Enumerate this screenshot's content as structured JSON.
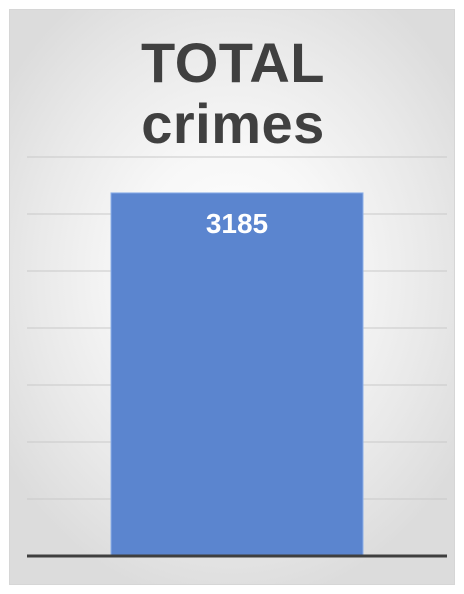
{
  "chart_data": {
    "type": "bar",
    "title_lines": [
      "TOTAL",
      "crimes"
    ],
    "categories": [
      ""
    ],
    "values": [
      3185
    ],
    "ylim": [
      0,
      3500
    ],
    "grid": true,
    "axes_visible": false,
    "legend": "none",
    "data_labels": [
      "3185"
    ],
    "bar_color": "#5b85cf",
    "bar_edge_color": "#8db0e8",
    "gridline_color": "#c9c9c9",
    "baseline_color": "#3f3f3f",
    "title_color": "#404040"
  }
}
